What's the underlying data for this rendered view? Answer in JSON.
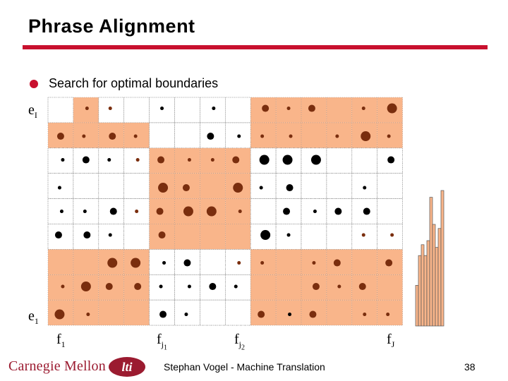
{
  "slide": {
    "title": "Phrase Alignment",
    "bullet": "Search for optimal boundaries",
    "footer_text": "Stephan Vogel - Machine Translation",
    "page_number": "38",
    "logo_text": "Carnegie Mellon",
    "logo_badge": "lti"
  },
  "axes": {
    "y_top": {
      "base": "e",
      "sub": "I"
    },
    "y_bottom": {
      "base": "e",
      "sub": "1"
    },
    "x_labels": [
      {
        "base": "f",
        "sub": "1",
        "subsub": ""
      },
      {
        "base": "f",
        "sub": "j",
        "subsub": "1"
      },
      {
        "base": "f",
        "sub": "j",
        "subsub": "2"
      },
      {
        "base": "f",
        "sub": "J",
        "subsub": ""
      }
    ]
  },
  "colors": {
    "accent_rule": "#c8102e",
    "phrase_fill": "#f9b58a",
    "dot_brown": "#7a2e0e",
    "dot_black": "#000000",
    "histogram_fill": "#f9b58a"
  },
  "matrix": {
    "cols": 14,
    "rows": 9,
    "highlight_rows_top_to_bottom": [
      [
        0,
        1,
        0,
        0,
        0,
        0,
        0,
        0,
        1,
        1,
        1,
        1,
        1,
        1
      ],
      [
        1,
        1,
        1,
        1,
        0,
        0,
        0,
        0,
        1,
        1,
        1,
        1,
        1,
        1
      ],
      [
        0,
        0,
        0,
        0,
        1,
        1,
        1,
        1,
        0,
        0,
        0,
        0,
        0,
        0
      ],
      [
        0,
        0,
        0,
        0,
        1,
        1,
        1,
        1,
        0,
        0,
        0,
        0,
        0,
        0
      ],
      [
        0,
        0,
        0,
        0,
        1,
        1,
        1,
        1,
        0,
        0,
        0,
        0,
        0,
        0
      ],
      [
        0,
        0,
        0,
        0,
        1,
        1,
        1,
        1,
        0,
        0,
        0,
        0,
        0,
        0
      ],
      [
        1,
        1,
        1,
        1,
        0,
        0,
        0,
        0,
        1,
        1,
        1,
        1,
        1,
        1
      ],
      [
        1,
        1,
        1,
        1,
        0,
        0,
        0,
        0,
        1,
        1,
        1,
        1,
        1,
        1
      ],
      [
        1,
        1,
        1,
        1,
        0,
        0,
        0,
        0,
        1,
        1,
        1,
        1,
        1,
        1
      ]
    ],
    "dots_top_to_bottom": [
      [
        0,
        1,
        1,
        0,
        1,
        0,
        1,
        0,
        2,
        1,
        2,
        0,
        1,
        3
      ],
      [
        2,
        1,
        2,
        1,
        0,
        0,
        2,
        1,
        1,
        1,
        0,
        1,
        3,
        1
      ],
      [
        1,
        2,
        1,
        1,
        2,
        1,
        1,
        2,
        3,
        3,
        3,
        0,
        0,
        2
      ],
      [
        1,
        0,
        0,
        0,
        3,
        2,
        0,
        3,
        1,
        2,
        0,
        0,
        1,
        0
      ],
      [
        1,
        1,
        2,
        1,
        2,
        3,
        3,
        1,
        0,
        2,
        1,
        2,
        2,
        0
      ],
      [
        2,
        2,
        1,
        0,
        2,
        0,
        0,
        0,
        3,
        1,
        0,
        0,
        1,
        1
      ],
      [
        0,
        0,
        3,
        3,
        1,
        2,
        0,
        1,
        1,
        0,
        1,
        2,
        0,
        2
      ],
      [
        1,
        3,
        2,
        2,
        1,
        1,
        2,
        1,
        0,
        0,
        2,
        1,
        2,
        0
      ],
      [
        3,
        1,
        0,
        0,
        2,
        1,
        0,
        0,
        2,
        1,
        2,
        0,
        1,
        1
      ]
    ],
    "dot_colors_top_to_bottom": [
      [
        "k",
        "b",
        "b",
        "k",
        "k",
        "k",
        "k",
        "k",
        "b",
        "b",
        "b",
        "k",
        "b",
        "b"
      ],
      [
        "b",
        "b",
        "b",
        "b",
        "k",
        "k",
        "k",
        "k",
        "b",
        "b",
        "k",
        "b",
        "b",
        "b"
      ],
      [
        "k",
        "k",
        "k",
        "b",
        "b",
        "b",
        "b",
        "b",
        "k",
        "k",
        "k",
        "k",
        "k",
        "k"
      ],
      [
        "k",
        "k",
        "k",
        "k",
        "b",
        "b",
        "k",
        "b",
        "k",
        "k",
        "k",
        "k",
        "k",
        "k"
      ],
      [
        "k",
        "k",
        "k",
        "b",
        "b",
        "b",
        "b",
        "b",
        "k",
        "k",
        "k",
        "k",
        "k",
        "k"
      ],
      [
        "k",
        "k",
        "k",
        "k",
        "b",
        "k",
        "k",
        "k",
        "k",
        "k",
        "k",
        "k",
        "b",
        "b"
      ],
      [
        "k",
        "k",
        "b",
        "b",
        "k",
        "k",
        "k",
        "b",
        "b",
        "k",
        "b",
        "b",
        "b",
        "b"
      ],
      [
        "b",
        "b",
        "b",
        "b",
        "k",
        "k",
        "k",
        "k",
        "k",
        "k",
        "b",
        "b",
        "b",
        "k"
      ],
      [
        "b",
        "b",
        "k",
        "k",
        "k",
        "k",
        "k",
        "k",
        "b",
        "k",
        "b",
        "k",
        "b",
        "b"
      ]
    ]
  },
  "histogram": {
    "bars": [
      0.3,
      0.52,
      0.6,
      0.52,
      0.63,
      0.95,
      0.75,
      0.58,
      0.72,
      1.0
    ]
  }
}
